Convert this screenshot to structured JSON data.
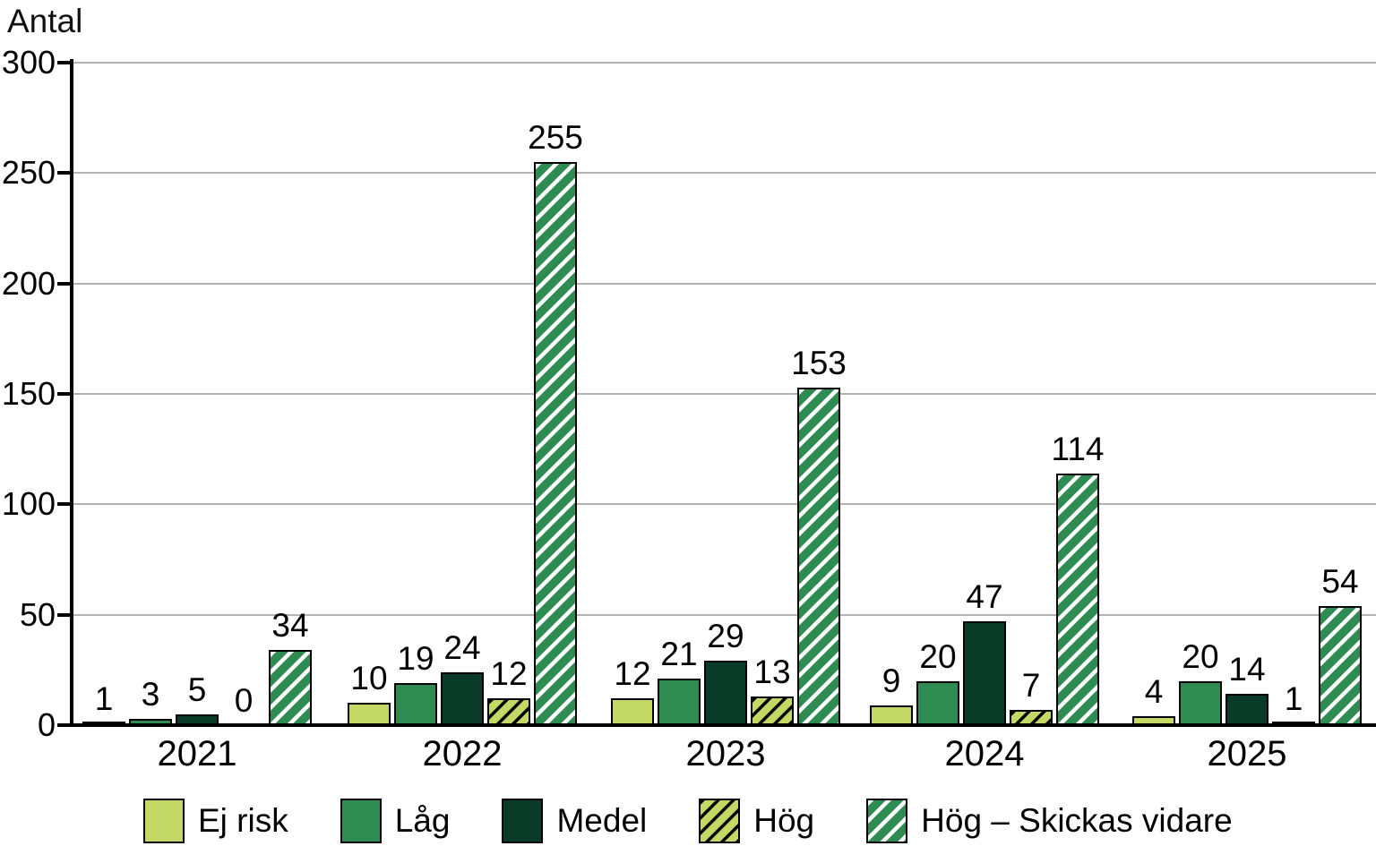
{
  "chart_data": {
    "type": "bar",
    "ylabel": "Antal",
    "categories": [
      "2021",
      "2022",
      "2023",
      "2024",
      "2025"
    ],
    "series": [
      {
        "name": "Ej risk",
        "style": "solid",
        "color": "#c4d965",
        "values": [
          1,
          10,
          12,
          9,
          4
        ]
      },
      {
        "name": "Låg",
        "style": "solid",
        "color": "#2e8b51",
        "values": [
          3,
          19,
          21,
          20,
          20
        ]
      },
      {
        "name": "Medel",
        "style": "solid",
        "color": "#0a3a28",
        "values": [
          5,
          24,
          29,
          47,
          14
        ]
      },
      {
        "name": "Hög",
        "style": "hatch-black",
        "color": "#c4d965",
        "values": [
          0,
          12,
          13,
          7,
          1
        ]
      },
      {
        "name": "Hög – Skickas vidare",
        "style": "hatch-white",
        "color": "#2e8b51",
        "values": [
          34,
          255,
          153,
          114,
          54
        ]
      }
    ],
    "ylim": [
      0,
      300
    ],
    "yticks": [
      0,
      50,
      100,
      150,
      200,
      250,
      300
    ],
    "grid": true,
    "legend_position": "bottom",
    "colors": {
      "gridline": "#b3b3b3",
      "axis": "#000000",
      "text": "#000000"
    }
  }
}
